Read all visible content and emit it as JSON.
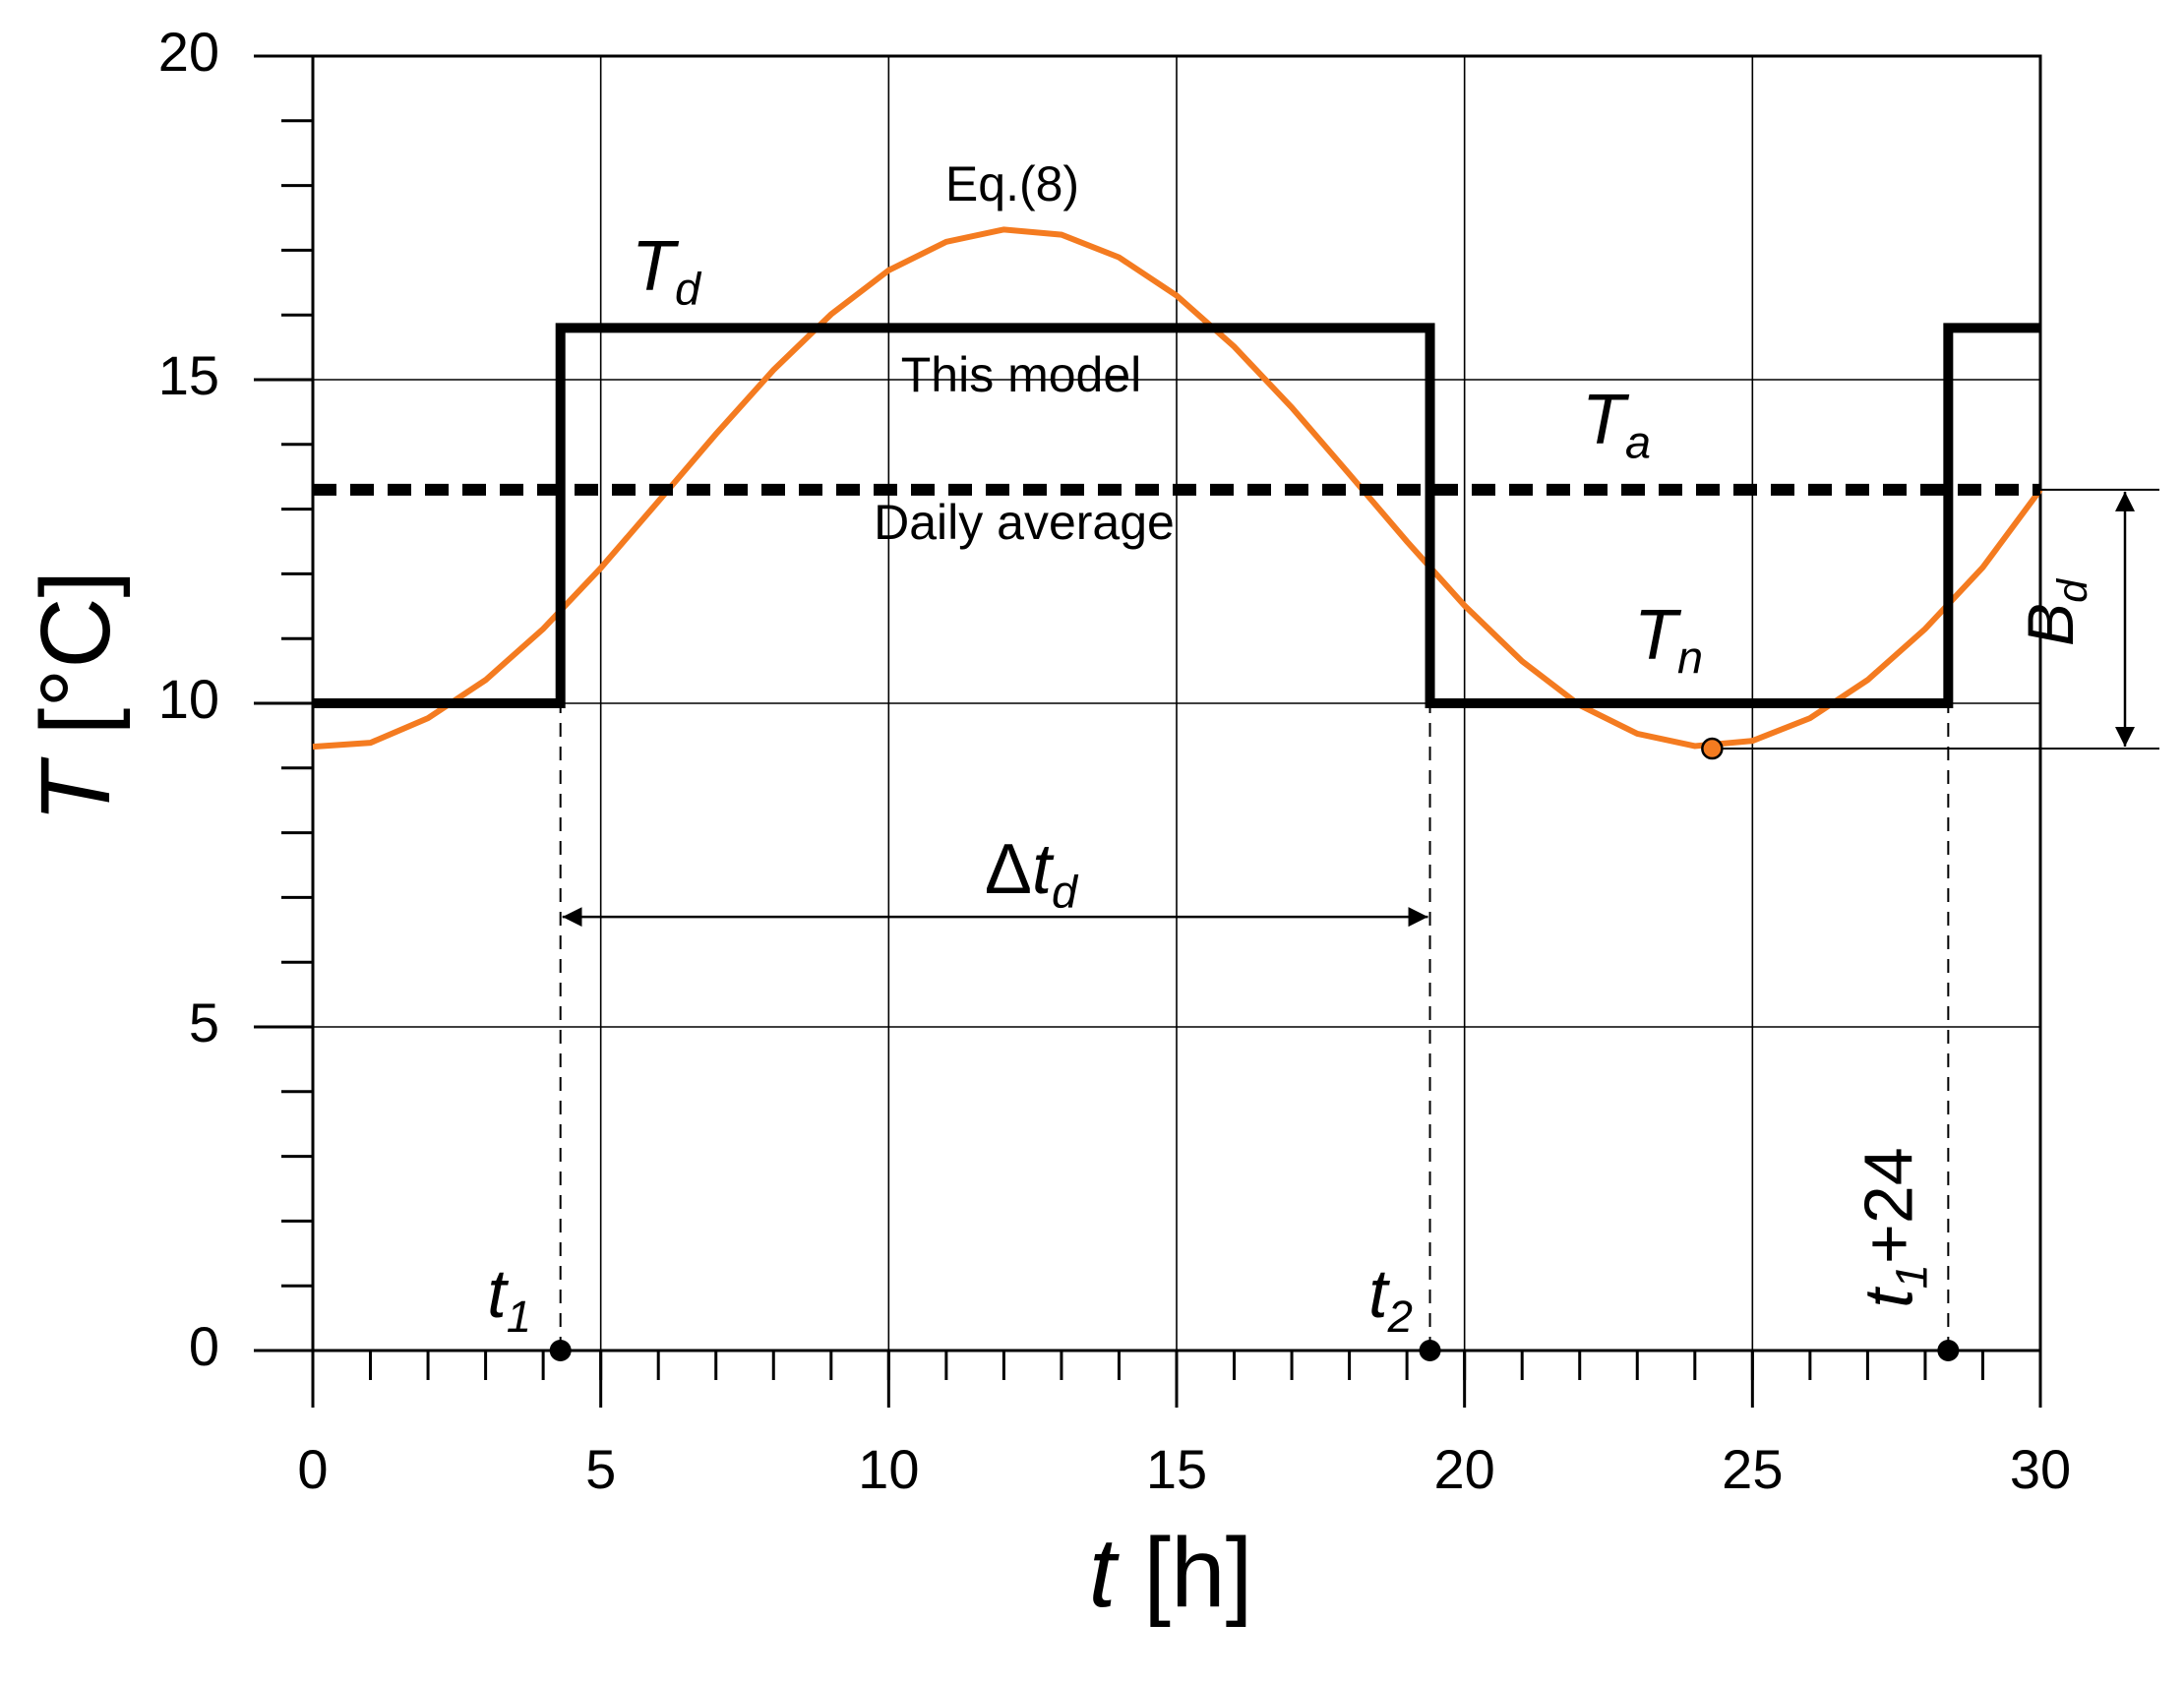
{
  "chart_data": {
    "type": "line",
    "x_label": {
      "symbol": "t",
      "unit": "[h]"
    },
    "y_label": {
      "symbol": "T",
      "unit": "[°C]"
    },
    "xlim": [
      0,
      30
    ],
    "xticks": [
      0,
      5,
      10,
      15,
      20,
      25,
      30
    ],
    "ylim": [
      0,
      20
    ],
    "yticks": [
      0,
      5,
      10,
      15,
      20
    ],
    "minor_tick_step": 1,
    "grid": true,
    "series": [
      {
        "name": "Eq.(8)",
        "color": "#f47b20",
        "dash": false,
        "x": [
          0,
          1,
          2,
          3,
          4,
          5,
          6,
          7,
          8,
          9,
          10,
          11,
          12,
          13,
          14,
          15,
          16,
          17,
          18,
          19,
          20,
          21,
          22,
          23,
          24,
          25,
          26,
          27,
          28,
          29,
          30
        ],
        "values": [
          9.33,
          9.39,
          9.77,
          10.36,
          11.15,
          12.09,
          13.12,
          14.16,
          15.15,
          16.01,
          16.69,
          17.13,
          17.32,
          17.24,
          16.89,
          16.3,
          15.51,
          14.57,
          13.54,
          12.5,
          11.51,
          10.65,
          9.97,
          9.53,
          9.34,
          9.42,
          9.77,
          10.36,
          11.15,
          12.1,
          13.3
        ]
      },
      {
        "name": "This model",
        "color": "#000000",
        "dash": false,
        "x": [
          0,
          4.3,
          4.3,
          19.4,
          19.4,
          28.4,
          28.4,
          30
        ],
        "values": [
          10,
          10,
          15.8,
          15.8,
          10,
          10,
          15.8,
          15.8
        ]
      },
      {
        "name": "Daily average",
        "color": "#000000",
        "dash": true,
        "x": [
          0,
          30
        ],
        "values": [
          13.3,
          13.3
        ]
      }
    ],
    "min_point": {
      "x": 24.3,
      "value": 9.3,
      "color": "#f47b20"
    },
    "events": [
      {
        "label": {
          "symbol": "t",
          "sub": "1"
        },
        "x": 4.3,
        "value": 0
      },
      {
        "label": {
          "symbol": "t",
          "sub": "2"
        },
        "x": 19.4,
        "value": 0
      },
      {
        "label": {
          "symbol": "t",
          "sub": "1",
          "suffix": "+24"
        },
        "x": 28.4,
        "value": 0
      }
    ],
    "symbols": {
      "day": {
        "symbol": "T",
        "sub": "d"
      },
      "average": {
        "symbol": "T",
        "sub": "a"
      },
      "night": {
        "symbol": "T",
        "sub": "n"
      },
      "amplitude": {
        "symbol": "B",
        "sub": "d"
      },
      "duration": {
        "prefix": "Δ",
        "symbol": "t",
        "sub": "d"
      }
    }
  }
}
